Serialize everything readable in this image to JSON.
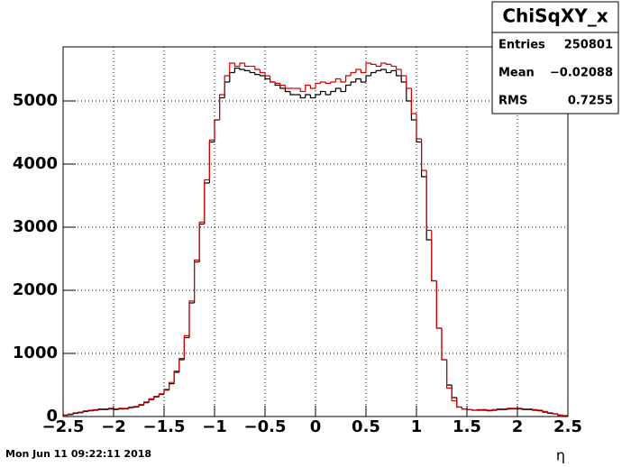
{
  "chart_data": {
    "type": "histogram",
    "x_label": "η",
    "timestamp": "Mon Jun 11 09:22:11 2018",
    "stats": {
      "title": "ChiSqXY_x",
      "entries_label": "Entries",
      "entries": 250801,
      "mean_label": "Mean",
      "mean": {
        "value": -0.02088,
        "label": "−0.02088"
      },
      "rms_label": "RMS",
      "rms": 0.7255
    },
    "xlim": [
      -2.5,
      2.5
    ],
    "ylim": [
      0,
      5857
    ],
    "xticks": [
      {
        "value": -2.5,
        "label": "−2.5"
      },
      {
        "value": -2,
        "label": "−2"
      },
      {
        "value": -1.5,
        "label": "−1.5"
      },
      {
        "value": -1,
        "label": "−1"
      },
      {
        "value": -0.5,
        "label": "−0.5"
      },
      0,
      0.5,
      1,
      1.5,
      2,
      2.5
    ],
    "yticks": [
      0,
      1000,
      2000,
      3000,
      4000,
      5000
    ],
    "grid": true,
    "bins": [
      -2.5,
      -2.45,
      -2.4,
      -2.35,
      -2.3,
      -2.25,
      -2.2,
      -2.15,
      -2.1,
      -2.05,
      -2,
      -1.95,
      -1.9,
      -1.85,
      -1.8,
      -1.75,
      -1.7,
      -1.65,
      -1.6,
      -1.55,
      -1.5,
      -1.45,
      -1.4,
      -1.35,
      -1.3,
      -1.25,
      -1.2,
      -1.15,
      -1.1,
      -1.05,
      -1,
      -0.95,
      -0.9,
      -0.85,
      -0.8,
      -0.75,
      -0.7,
      -0.65,
      -0.6,
      -0.55,
      -0.5,
      -0.45,
      -0.4,
      -0.35,
      -0.3,
      -0.25,
      -0.2,
      -0.15,
      -0.1,
      -0.05,
      0,
      0.05,
      0.1,
      0.15,
      0.2,
      0.25,
      0.3,
      0.35,
      0.4,
      0.45,
      0.5,
      0.55,
      0.6,
      0.65,
      0.7,
      0.75,
      0.8,
      0.85,
      0.9,
      0.95,
      1,
      1.05,
      1.1,
      1.15,
      1.2,
      1.25,
      1.3,
      1.35,
      1.4,
      1.45,
      1.5,
      1.55,
      1.6,
      1.65,
      1.7,
      1.75,
      1.8,
      1.85,
      1.9,
      1.95,
      2,
      2.05,
      2.1,
      2.15,
      2.2,
      2.25,
      2.3,
      2.35,
      2.4,
      2.45,
      2.5
    ],
    "series": [
      {
        "color": "#000000",
        "values": [
          20,
          30,
          50,
          60,
          80,
          90,
          100,
          110,
          110,
          120,
          110,
          120,
          120,
          140,
          150,
          180,
          220,
          270,
          310,
          350,
          420,
          520,
          700,
          900,
          1250,
          1800,
          2450,
          3050,
          3700,
          4350,
          4700,
          5050,
          5300,
          5450,
          5520,
          5500,
          5480,
          5450,
          5420,
          5400,
          5350,
          5300,
          5250,
          5200,
          5150,
          5100,
          5100,
          5050,
          5100,
          5050,
          5100,
          5150,
          5100,
          5150,
          5200,
          5150,
          5250,
          5300,
          5350,
          5300,
          5400,
          5450,
          5480,
          5500,
          5450,
          5480,
          5400,
          5300,
          5000,
          4700,
          4350,
          3800,
          2800,
          2150,
          1400,
          900,
          500,
          300,
          150,
          120,
          110,
          100,
          100,
          100,
          90,
          100,
          110,
          110,
          120,
          120,
          120,
          110,
          110,
          100,
          90,
          70,
          50,
          40,
          20,
          10
        ]
      },
      {
        "color": "#d00000",
        "values": [
          25,
          40,
          60,
          70,
          90,
          100,
          110,
          120,
          120,
          130,
          120,
          130,
          130,
          150,
          160,
          190,
          230,
          280,
          320,
          360,
          430,
          540,
          720,
          920,
          1280,
          1830,
          2480,
          3080,
          3750,
          4380,
          4700,
          5100,
          5400,
          5600,
          5550,
          5600,
          5550,
          5550,
          5500,
          5450,
          5400,
          5300,
          5280,
          5250,
          5200,
          5200,
          5200,
          5150,
          5250,
          5200,
          5280,
          5300,
          5280,
          5300,
          5350,
          5300,
          5400,
          5450,
          5500,
          5450,
          5600,
          5580,
          5550,
          5600,
          5580,
          5550,
          5500,
          5400,
          5200,
          4800,
          4400,
          3900,
          2950,
          2150,
          1400,
          900,
          450,
          250,
          150,
          120,
          110,
          100,
          110,
          110,
          100,
          110,
          120,
          120,
          130,
          130,
          130,
          120,
          120,
          110,
          100,
          80,
          60,
          45,
          25,
          15
        ]
      }
    ]
  }
}
